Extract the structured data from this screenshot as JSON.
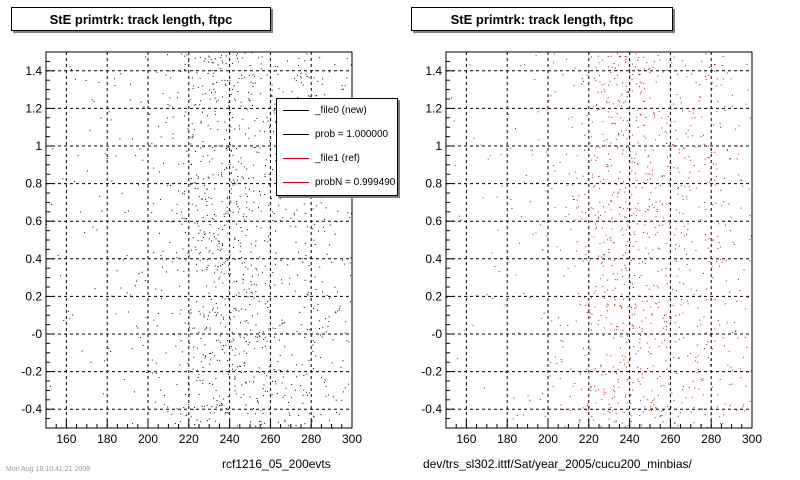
{
  "panels": [
    {
      "title": "StE primtrk: track length, ftpc",
      "footer": "rcf1216_05_200evts",
      "stamp": "Mon Aug 18 10:41:21 2008",
      "color": "#000000"
    },
    {
      "title": "StE primtrk: track length, ftpc",
      "footer": "dev/trs_sl302.ittf/Sat/year_2005/cucu200_minbias/",
      "color": "#cc0000"
    }
  ],
  "legend": {
    "entries": [
      {
        "label": "_file0 (new)",
        "color": "#000000"
      },
      {
        "label": "prob = 1.000000",
        "color": "#000000"
      },
      {
        "label": "_file1 (ref)",
        "color": "#cc0000"
      },
      {
        "label": "probN = 0.999490",
        "color": "#cc0000"
      }
    ]
  },
  "chart_data": [
    {
      "type": "scatter",
      "title": "StE primtrk: track length, ftpc",
      "xlabel": "rcf1216_05_200evts",
      "ylabel": "",
      "xlim": [
        150,
        300
      ],
      "ylim": [
        -0.5,
        1.5
      ],
      "x_ticks": [
        160,
        180,
        200,
        220,
        240,
        260,
        280,
        300
      ],
      "y_ticks": [
        -0.4,
        -0.2,
        0,
        0.2,
        0.4,
        0.6,
        0.8,
        1,
        1.2,
        1.4
      ],
      "y_tick_labels": [
        "-0.4",
        "-0.2",
        "-0",
        "0.2",
        "0.4",
        "0.6",
        "0.8",
        "1",
        "1.2",
        "1.4"
      ],
      "grid": true,
      "legend_position": "top-right",
      "series": [
        {
          "name": "_file0 (new)",
          "point_density_by_x": [
            [
              150,
              0.4
            ],
            [
              170,
              0.6
            ],
            [
              190,
              1.2
            ],
            [
              205,
              2.0
            ],
            [
              215,
              3.5
            ],
            [
              222,
              6.5
            ],
            [
              230,
              9.0
            ],
            [
              238,
              10.0
            ],
            [
              245,
              8.5
            ],
            [
              252,
              7.0
            ],
            [
              258,
              5.2
            ],
            [
              265,
              5.5
            ],
            [
              272,
              4.0
            ],
            [
              278,
              5.5
            ],
            [
              282,
              5.0
            ],
            [
              290,
              3.0
            ],
            [
              300,
              2.2
            ]
          ]
        }
      ]
    },
    {
      "type": "scatter",
      "title": "StE primtrk: track length, ftpc",
      "xlabel": "dev/trs_sl302.ittf/Sat/year_2005/cucu200_minbias/",
      "ylabel": "",
      "xlim": [
        150,
        300
      ],
      "ylim": [
        -0.5,
        1.5
      ],
      "x_ticks": [
        160,
        180,
        200,
        220,
        240,
        260,
        280,
        300
      ],
      "y_ticks": [
        -0.4,
        -0.2,
        0,
        0.2,
        0.4,
        0.6,
        0.8,
        1,
        1.2,
        1.4
      ],
      "y_tick_labels": [
        "-0.4",
        "-0.2",
        "-0",
        "0.2",
        "0.4",
        "0.6",
        "0.8",
        "1",
        "1.2",
        "1.4"
      ],
      "grid": true,
      "series": [
        {
          "name": "_file1 (ref)",
          "point_density_by_x": [
            [
              150,
              0.3
            ],
            [
              170,
              0.5
            ],
            [
              190,
              1.0
            ],
            [
              205,
              1.8
            ],
            [
              215,
              3.2
            ],
            [
              222,
              6.0
            ],
            [
              230,
              8.5
            ],
            [
              238,
              9.5
            ],
            [
              245,
              8.0
            ],
            [
              252,
              6.5
            ],
            [
              258,
              5.0
            ],
            [
              265,
              5.5
            ],
            [
              272,
              3.8
            ],
            [
              278,
              5.2
            ],
            [
              282,
              4.8
            ],
            [
              290,
              2.8
            ],
            [
              300,
              2.0
            ]
          ]
        }
      ]
    }
  ]
}
